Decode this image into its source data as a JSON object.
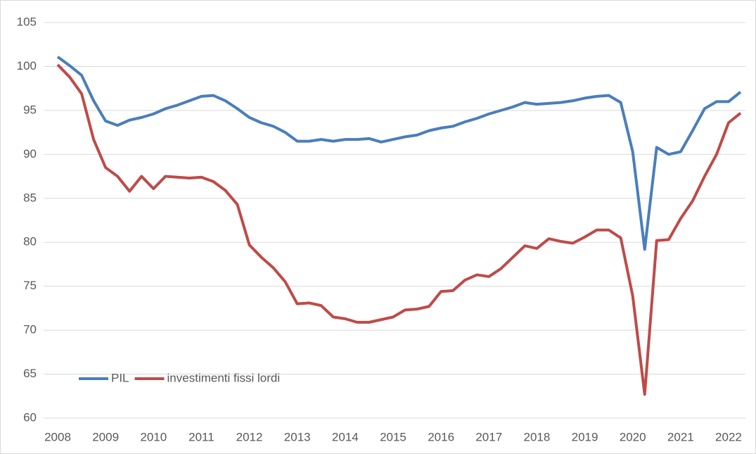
{
  "chart_data": {
    "type": "line",
    "categories": [
      "2008",
      null,
      null,
      null,
      "2009",
      null,
      null,
      null,
      "2010",
      null,
      null,
      null,
      "2011",
      null,
      null,
      null,
      "2012",
      null,
      null,
      null,
      "2013",
      null,
      null,
      null,
      "2014",
      null,
      null,
      null,
      "2015",
      null,
      null,
      null,
      "2016",
      null,
      null,
      null,
      "2017",
      null,
      null,
      null,
      "2018",
      null,
      null,
      null,
      "2019",
      null,
      null,
      null,
      "2020",
      null,
      null,
      null,
      "2021",
      null,
      null,
      null,
      "2022",
      null
    ],
    "series": [
      {
        "name": "PIL",
        "color": "#4a7ebb",
        "values": [
          101.1,
          100.1,
          99.0,
          96.1,
          93.8,
          93.3,
          93.9,
          94.2,
          94.6,
          95.2,
          95.6,
          96.1,
          96.6,
          96.7,
          96.1,
          95.2,
          94.2,
          93.6,
          93.2,
          92.5,
          91.5,
          91.5,
          91.7,
          91.5,
          91.7,
          91.7,
          91.8,
          91.4,
          91.7,
          92.0,
          92.2,
          92.7,
          93.0,
          93.2,
          93.7,
          94.1,
          94.6,
          95.0,
          95.4,
          95.9,
          95.7,
          95.8,
          95.9,
          96.1,
          96.4,
          96.6,
          96.7,
          95.9,
          90.3,
          79.2,
          90.8,
          90.0,
          90.3,
          92.7,
          95.2,
          96.0,
          96.0,
          97.1
        ]
      },
      {
        "name": "investimenti fissi lordi",
        "color": "#be4b48",
        "values": [
          100.2,
          98.8,
          96.9,
          91.7,
          88.5,
          87.5,
          85.8,
          87.5,
          86.1,
          87.5,
          87.4,
          87.3,
          87.4,
          86.9,
          85.9,
          84.3,
          79.7,
          78.3,
          77.1,
          75.5,
          73.0,
          73.1,
          72.8,
          71.5,
          71.3,
          70.9,
          70.9,
          71.2,
          71.5,
          72.3,
          72.4,
          72.7,
          74.4,
          74.5,
          75.7,
          76.3,
          76.1,
          77.0,
          78.3,
          79.6,
          79.3,
          80.4,
          80.1,
          79.9,
          80.6,
          81.4,
          81.4,
          80.5,
          73.9,
          62.7,
          80.2,
          80.3,
          82.7,
          84.7,
          87.5,
          90.0,
          93.6,
          94.7
        ]
      }
    ],
    "ylim": [
      60,
      105
    ],
    "yticks": [
      60,
      65,
      70,
      75,
      80,
      85,
      90,
      95,
      100,
      105
    ],
    "grid": true,
    "legend": "lower left"
  }
}
